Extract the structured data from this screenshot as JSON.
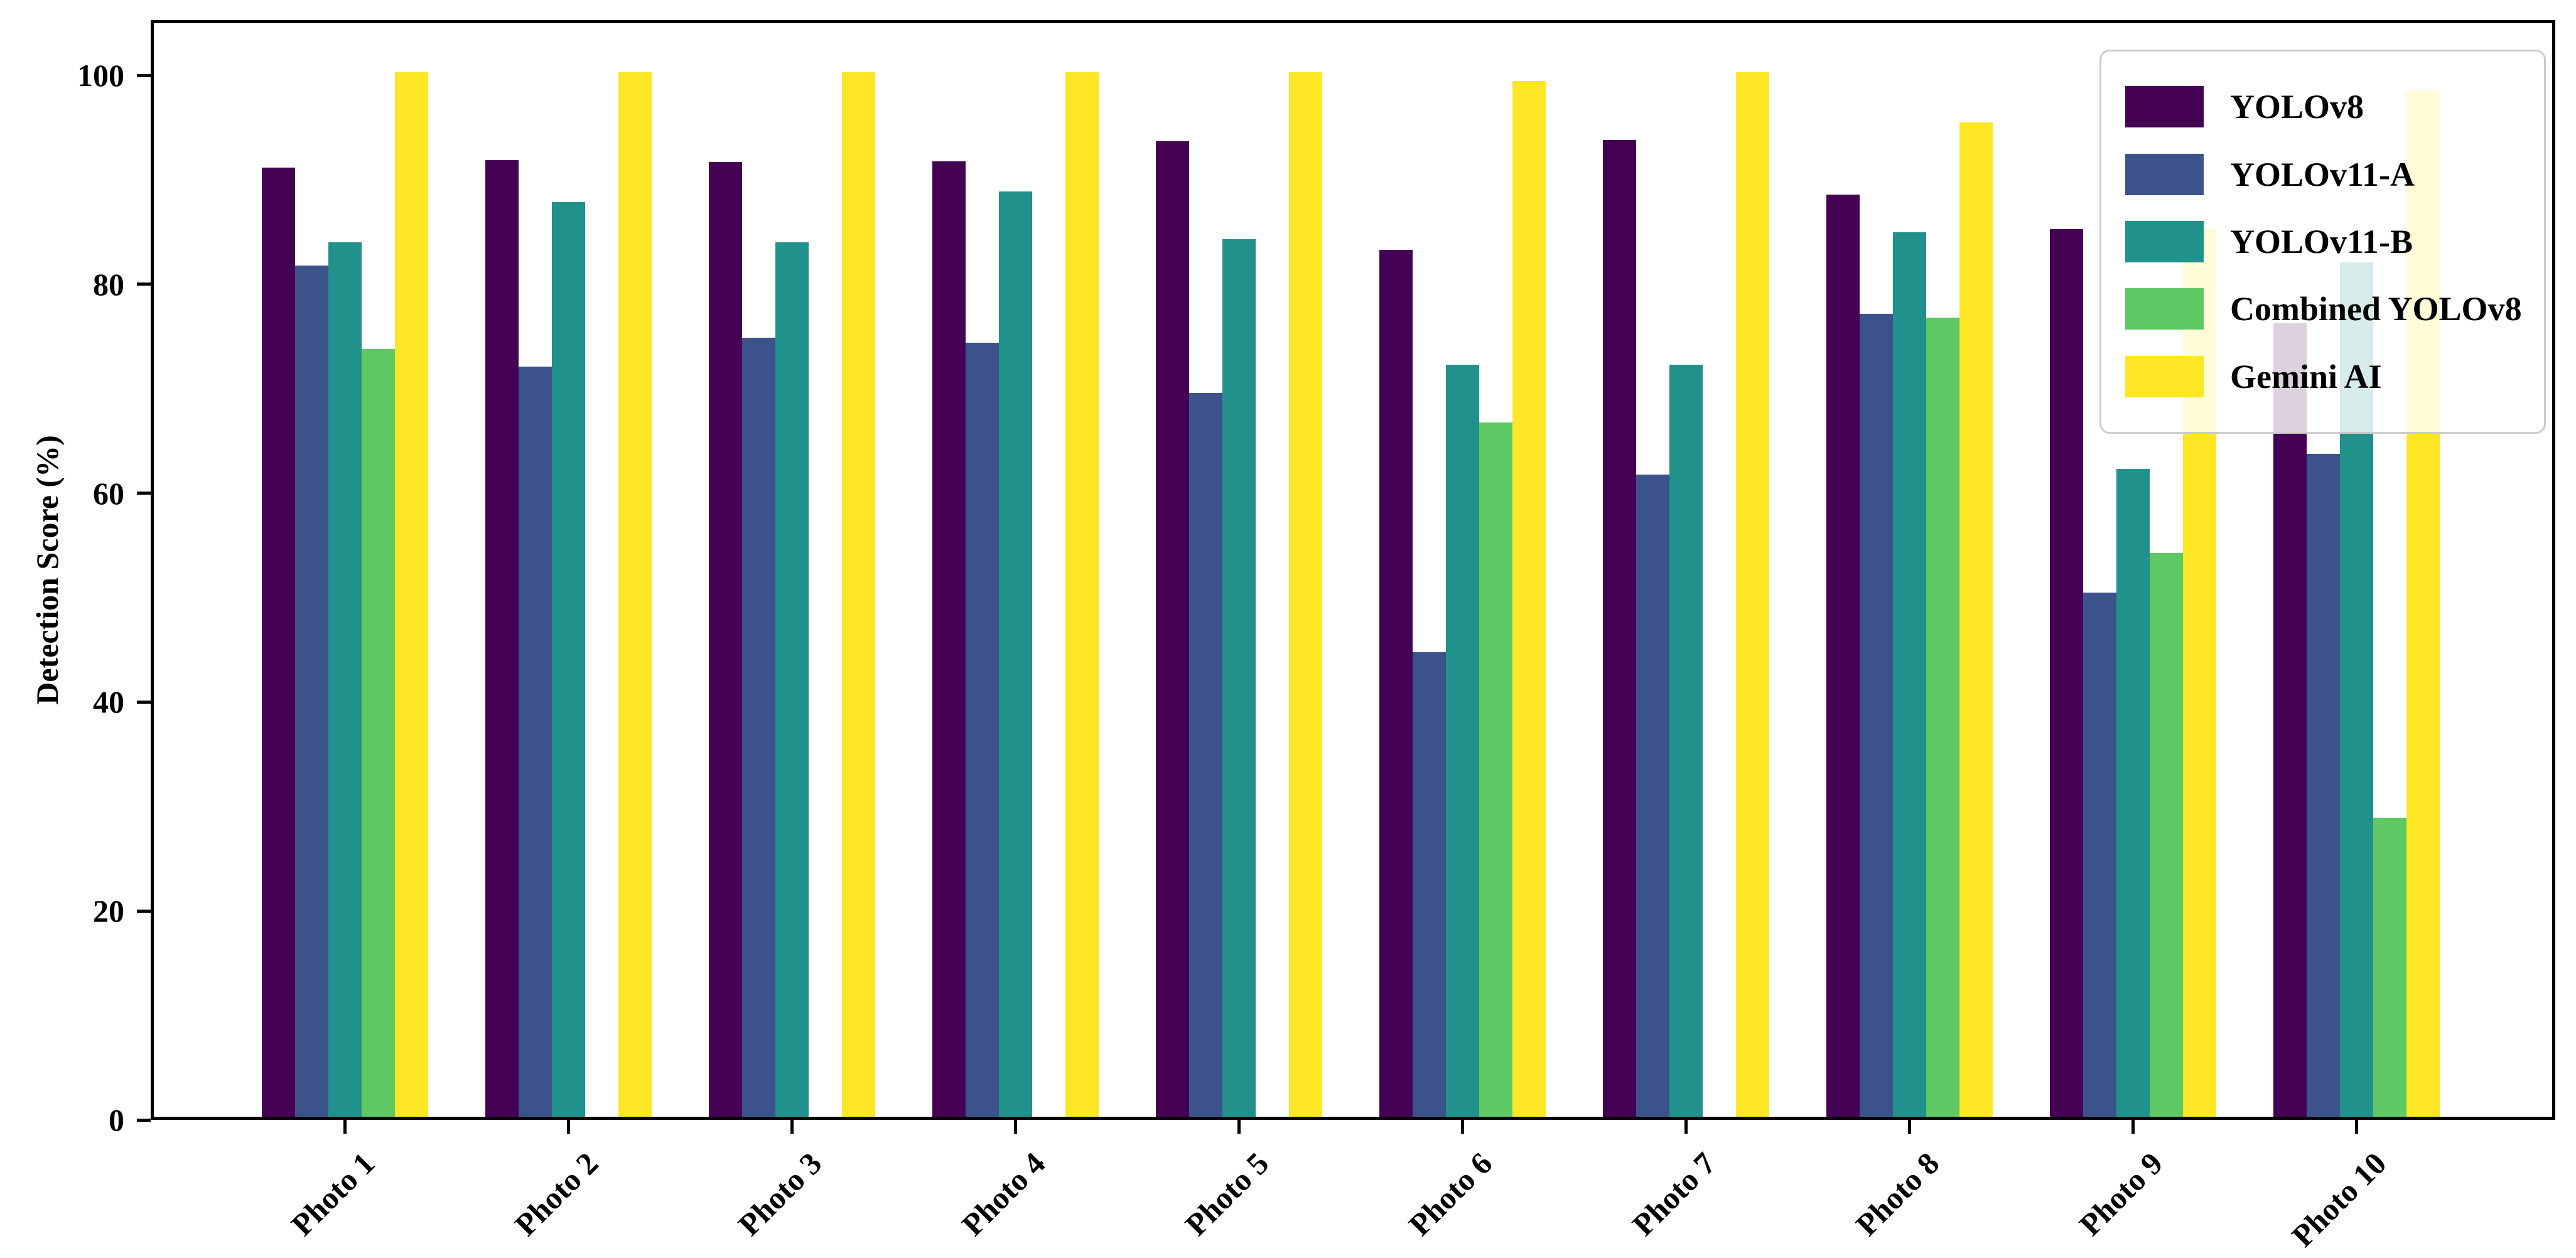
{
  "chart_data": {
    "type": "bar",
    "title": "",
    "ylabel": "Detection Score (%)",
    "xlabel": "",
    "categories": [
      "Photo 1",
      "Photo 2",
      "Photo 3",
      "Photo 4",
      "Photo 5",
      "Photo 6",
      "Photo 7",
      "Photo 8",
      "Photo 9",
      "Photo 10"
    ],
    "series": [
      {
        "name": "YOLOv8",
        "color": "#440154",
        "values": [
          90.9,
          91.6,
          91.4,
          91.5,
          93.4,
          83.0,
          93.5,
          88.3,
          85.0,
          76.0
        ]
      },
      {
        "name": "YOLOv11-A",
        "color": "#3b528b",
        "values": [
          81.5,
          71.8,
          74.6,
          74.1,
          69.3,
          44.5,
          61.5,
          76.9,
          50.2,
          63.5
        ]
      },
      {
        "name": "YOLOv11-B",
        "color": "#21918c",
        "values": [
          83.7,
          87.6,
          83.7,
          88.6,
          84.0,
          72.0,
          72.0,
          84.7,
          62.0,
          81.8
        ]
      },
      {
        "name": "Combined YOLOv8",
        "color": "#5ec962",
        "values": [
          73.5,
          0,
          0,
          0,
          0,
          66.5,
          0,
          76.5,
          54.0,
          28.6
        ]
      },
      {
        "name": "Gemini AI",
        "color": "#fde725",
        "values": [
          100,
          100,
          100,
          100,
          100,
          99.2,
          100,
          95.2,
          85.0,
          98.2
        ]
      }
    ],
    "yticks": [
      0,
      20,
      40,
      60,
      80,
      100
    ],
    "ylim": [
      0,
      105.3
    ],
    "grid": false,
    "legend_position": "upper right",
    "axis_color": "#000000",
    "background_color": "#ffffff"
  }
}
